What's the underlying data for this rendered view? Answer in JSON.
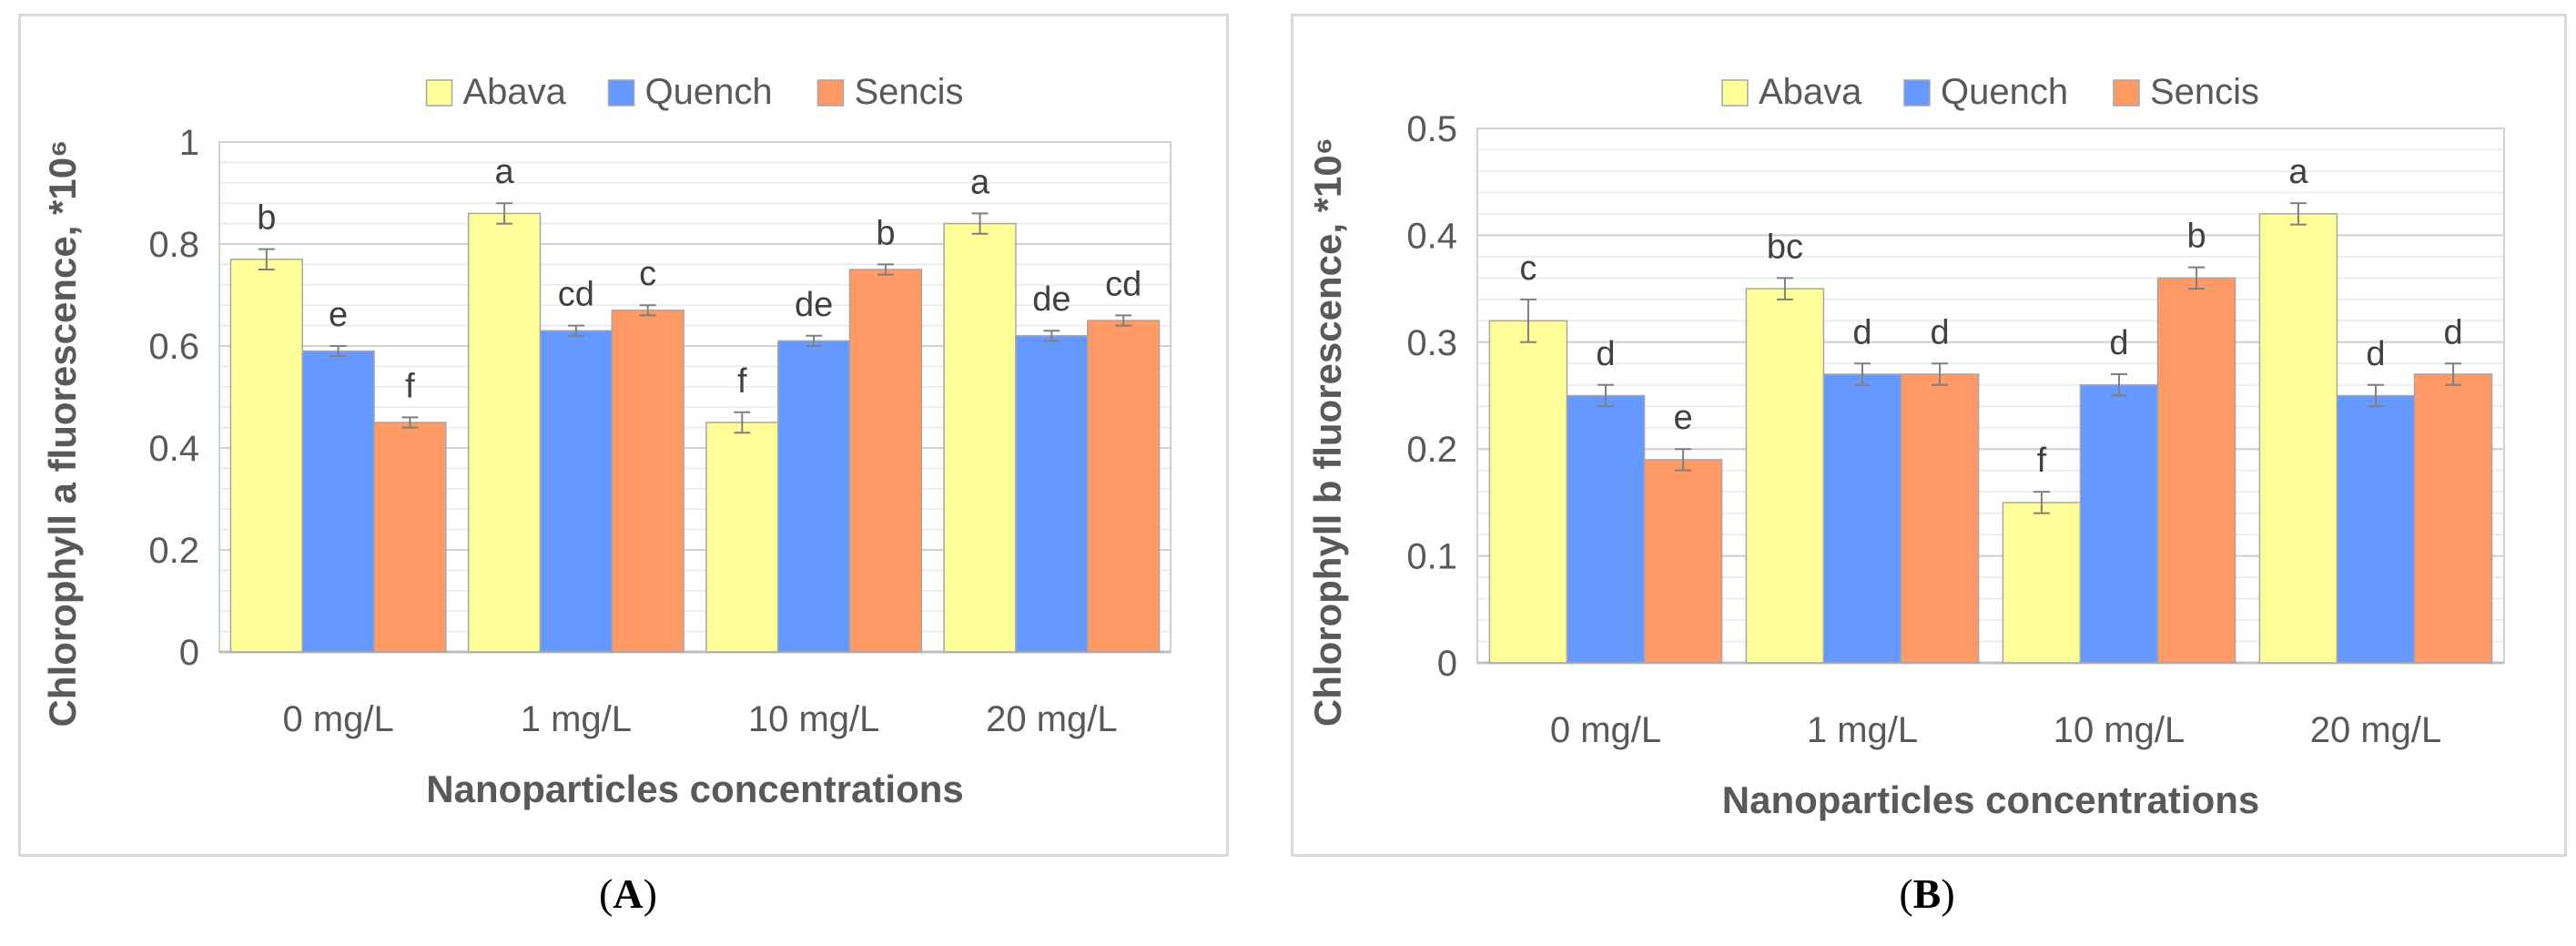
{
  "chart_data": [
    {
      "type": "bar",
      "panel": "A",
      "title": "",
      "xlabel": "Nanoparticles concentrations",
      "ylabel": "Chlorophyll a fluorescence, *10⁶",
      "categories": [
        "0 mg/L",
        "1 mg/L",
        "10 mg/L",
        "20 mg/L"
      ],
      "ylim": [
        0,
        1
      ],
      "yticks": [
        0,
        0.2,
        0.4,
        0.6,
        0.8,
        1
      ],
      "ytick_labels": [
        "0",
        "0.2",
        "0.4",
        "0.6",
        "0.8",
        "1"
      ],
      "minor_gridlines": true,
      "legend_position": "top",
      "series": [
        {
          "name": "Abava",
          "color": "#ffff99",
          "values": [
            0.77,
            0.86,
            0.45,
            0.84
          ],
          "errors": [
            0.02,
            0.02,
            0.02,
            0.02
          ],
          "labels": [
            "b",
            "a",
            "f",
            "a"
          ]
        },
        {
          "name": "Quench",
          "color": "#6699ff",
          "values": [
            0.59,
            0.63,
            0.61,
            0.62
          ],
          "errors": [
            0.01,
            0.01,
            0.01,
            0.01
          ],
          "labels": [
            "e",
            "cd",
            "de",
            "de"
          ]
        },
        {
          "name": "Sencis",
          "color": "#ff9966",
          "values": [
            0.45,
            0.67,
            0.75,
            0.65
          ],
          "errors": [
            0.01,
            0.01,
            0.01,
            0.01
          ],
          "labels": [
            "f",
            "c",
            "b",
            "cd"
          ]
        }
      ]
    },
    {
      "type": "bar",
      "panel": "B",
      "title": "",
      "xlabel": "Nanoparticles concentrations",
      "ylabel": "Chlorophyll b fluorescence, *10⁶",
      "categories": [
        "0 mg/L",
        "1 mg/L",
        "10 mg/L",
        "20 mg/L"
      ],
      "ylim": [
        0,
        0.5
      ],
      "yticks": [
        0,
        0.1,
        0.2,
        0.3,
        0.4,
        0.5
      ],
      "ytick_labels": [
        "0",
        "0.1",
        "0.2",
        "0.3",
        "0.4",
        "0.5"
      ],
      "minor_gridlines": true,
      "legend_position": "top",
      "series": [
        {
          "name": "Abava",
          "color": "#ffff99",
          "values": [
            0.32,
            0.35,
            0.15,
            0.42
          ],
          "errors": [
            0.02,
            0.01,
            0.01,
            0.01
          ],
          "labels": [
            "c",
            "bc",
            "f",
            "a"
          ]
        },
        {
          "name": "Quench",
          "color": "#6699ff",
          "values": [
            0.25,
            0.27,
            0.26,
            0.25
          ],
          "errors": [
            0.01,
            0.01,
            0.01,
            0.01
          ],
          "labels": [
            "d",
            "d",
            "d",
            "d"
          ]
        },
        {
          "name": "Sencis",
          "color": "#ff9966",
          "values": [
            0.19,
            0.27,
            0.36,
            0.27
          ],
          "errors": [
            0.01,
            0.01,
            0.01,
            0.01
          ],
          "labels": [
            "e",
            "d",
            "b",
            "d"
          ]
        }
      ]
    }
  ],
  "captions": {
    "a_open": "(",
    "a_letter": "A",
    "a_close": ")",
    "b_open": "(",
    "b_letter": "B",
    "b_close": ")"
  }
}
